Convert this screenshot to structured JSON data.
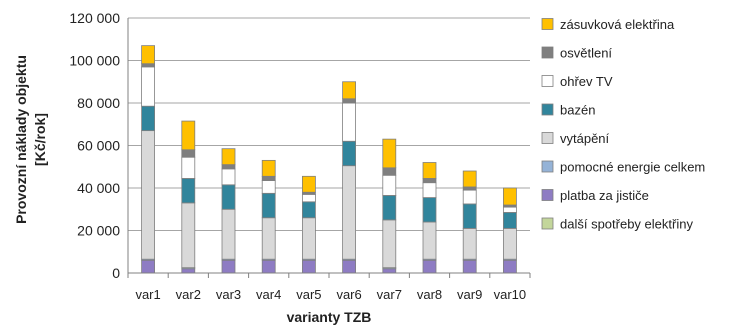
{
  "chart_data": {
    "type": "bar",
    "stacked": true,
    "xlabel": "varianty TZB",
    "ylabel_line1": "Provozní náklady objektu",
    "ylabel_line2": "[Kč/rok]",
    "ylim": [
      0,
      120000
    ],
    "yticks": [
      0,
      20000,
      40000,
      60000,
      80000,
      100000,
      120000
    ],
    "ytick_labels": [
      "0",
      "20 000",
      "40 000",
      "60 000",
      "80 000",
      "100 000",
      "120 000"
    ],
    "grid": true,
    "legend_position": "right",
    "categories": [
      "var1",
      "var2",
      "var3",
      "var4",
      "var5",
      "var6",
      "var7",
      "var8",
      "var9",
      "var10"
    ],
    "series": [
      {
        "name": "další spotřeby elektřiny",
        "color": "#c3d69b",
        "values": [
          0,
          0,
          0,
          0,
          0,
          0,
          0,
          0,
          0,
          0
        ]
      },
      {
        "name": "platba za jističe",
        "color": "#8e7cc3",
        "values": [
          6000,
          2000,
          6000,
          6000,
          6000,
          6000,
          2000,
          6000,
          6000,
          6000
        ]
      },
      {
        "name": "pomocné energie celkem",
        "color": "#95b3d7",
        "values": [
          500,
          500,
          500,
          500,
          500,
          500,
          500,
          500,
          500,
          500
        ]
      },
      {
        "name": "vytápění",
        "color": "#d9d9d9",
        "values": [
          60500,
          30500,
          23500,
          19500,
          19500,
          44000,
          22500,
          17500,
          14500,
          14500
        ]
      },
      {
        "name": "bazén",
        "color": "#31859c",
        "values": [
          11500,
          11500,
          11500,
          11500,
          7500,
          11500,
          11500,
          11500,
          11500,
          7500
        ]
      },
      {
        "name": "ohřev TV",
        "color": "#ffffff",
        "values": [
          18500,
          10000,
          7500,
          6000,
          3500,
          18000,
          9500,
          7000,
          6500,
          2500
        ]
      },
      {
        "name": "osvětlení",
        "color": "#7f7f7f",
        "values": [
          1500,
          3500,
          2000,
          2000,
          1000,
          2000,
          3500,
          2000,
          1500,
          1000
        ]
      },
      {
        "name": "zásuvková elektřina",
        "color": "#ffc000",
        "values": [
          8500,
          13500,
          7500,
          7500,
          7500,
          8000,
          13500,
          7500,
          7500,
          8000
        ]
      }
    ]
  }
}
